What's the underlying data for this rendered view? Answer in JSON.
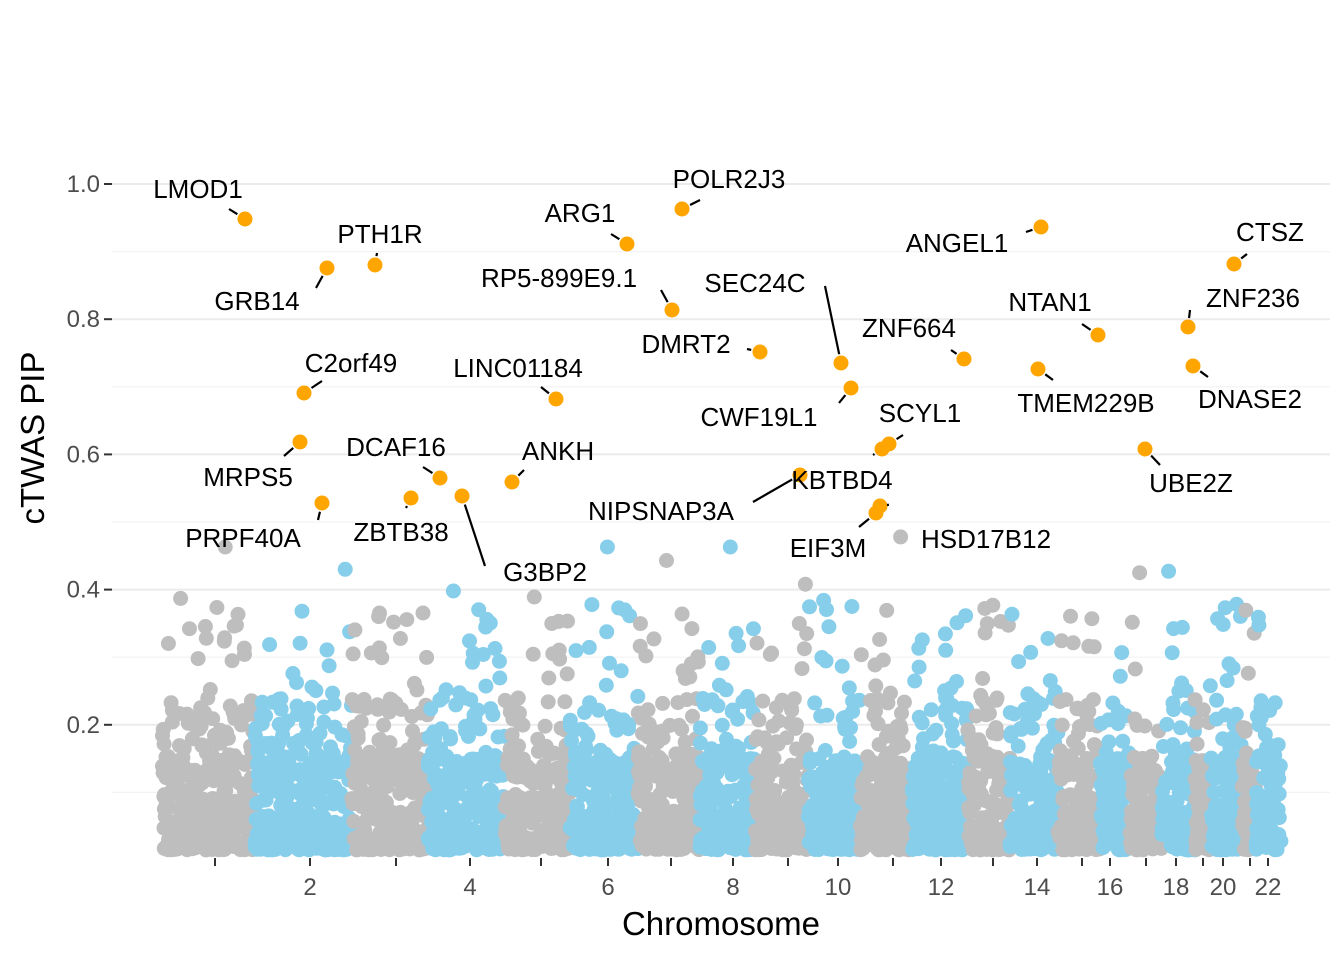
{
  "chart_data": {
    "type": "scatter",
    "title": "",
    "xlabel": "Chromosome",
    "ylabel": "cTWAS PIP",
    "ylim": [
      0,
      1.0
    ],
    "y_ticks": [
      0.2,
      0.4,
      0.6,
      0.8,
      1.0
    ],
    "y_tick_labels": [
      "0.2",
      "0.4",
      "0.6",
      "0.8",
      "1.0"
    ],
    "x_ticks": [
      {
        "label": "",
        "chrom": 1
      },
      {
        "label": "2",
        "chrom": 2
      },
      {
        "label": "",
        "chrom": 3
      },
      {
        "label": "4",
        "chrom": 4
      },
      {
        "label": "",
        "chrom": 5
      },
      {
        "label": "6",
        "chrom": 6
      },
      {
        "label": "",
        "chrom": 7
      },
      {
        "label": "8",
        "chrom": 8
      },
      {
        "label": "",
        "chrom": 9
      },
      {
        "label": "10",
        "chrom": 10
      },
      {
        "label": "",
        "chrom": 11
      },
      {
        "label": "12",
        "chrom": 12
      },
      {
        "label": "",
        "chrom": 13
      },
      {
        "label": "14",
        "chrom": 14
      },
      {
        "label": "",
        "chrom": 15
      },
      {
        "label": "16",
        "chrom": 16
      },
      {
        "label": "",
        "chrom": 17
      },
      {
        "label": "18",
        "chrom": 18
      },
      {
        "label": "",
        "chrom": 19
      },
      {
        "label": "20",
        "chrom": 20
      },
      {
        "label": "",
        "chrom": 21
      },
      {
        "label": "22",
        "chrom": 22
      }
    ],
    "colors": {
      "odd_chromosome": "#bebebe",
      "even_chromosome": "#87ceeb",
      "highlight": "#ffa500",
      "grid": "#ebebeb"
    },
    "highlight_threshold": 0.5,
    "genes": [
      {
        "gene": "LMOD1",
        "chrom": 1,
        "pos": 0.58,
        "pip": 0.945
      },
      {
        "gene": "GRB14",
        "chrom": 2,
        "pos": 0.2,
        "pip": 0.875
      },
      {
        "gene": "PTH1R",
        "chrom": 3,
        "pos": 0.17,
        "pip": 0.878
      },
      {
        "gene": "C2orf49",
        "chrom": 2,
        "pos": 0.02,
        "pip": 0.69
      },
      {
        "gene": "MRPS5",
        "chrom": 1,
        "pos": 0.95,
        "pip": 0.617
      },
      {
        "gene": "PRPF40A",
        "chrom": 2,
        "pos": 0.15,
        "pip": 0.527
      },
      {
        "gene": "DCAF16",
        "chrom": 4,
        "pos": 0.08,
        "pip": 0.563
      },
      {
        "gene": "ZBTB38",
        "chrom": 3,
        "pos": 0.7,
        "pip": 0.535
      },
      {
        "gene": "G3BP2",
        "chrom": 4,
        "pos": 0.35,
        "pip": 0.537
      },
      {
        "gene": "LINC01184",
        "chrom": 5,
        "pos": 0.6,
        "pip": 0.681
      },
      {
        "gene": "ANKH",
        "chrom": 5,
        "pos": 0.04,
        "pip": 0.558
      },
      {
        "gene": "ARG1",
        "chrom": 6,
        "pos": 0.75,
        "pip": 0.91
      },
      {
        "gene": "POLR2J3",
        "chrom": 7,
        "pos": 0.6,
        "pip": 0.96
      },
      {
        "gene": "RP5-899E9.1",
        "chrom": 7,
        "pos": 0.2,
        "pip": 0.814
      },
      {
        "gene": "DMRT2",
        "chrom": 9,
        "pos": 0.05,
        "pip": 0.75
      },
      {
        "gene": "NIPSNAP3A",
        "chrom": 9,
        "pos": 0.9,
        "pip": 0.568
      },
      {
        "gene": "SEC24C",
        "chrom": 10,
        "pos": 0.3,
        "pip": 0.733
      },
      {
        "gene": "CWF19L1",
        "chrom": 10,
        "pos": 0.55,
        "pip": 0.697
      },
      {
        "gene": "KBTBD4",
        "chrom": 11,
        "pos": 0.42,
        "pip": 0.608
      },
      {
        "gene": "SCYL1",
        "chrom": 11,
        "pos": 0.6,
        "pip": 0.614
      },
      {
        "gene": "EIF3M",
        "chrom": 11,
        "pos": 0.3,
        "pip": 0.513
      },
      {
        "gene": "HSD17B12",
        "chrom": 11,
        "pos": 0.42,
        "pip": 0.523
      },
      {
        "gene": "ZNF664",
        "chrom": 12,
        "pos": 0.97,
        "pip": 0.74
      },
      {
        "gene": "ANGEL1",
        "chrom": 14,
        "pos": 0.6,
        "pip": 0.935
      },
      {
        "gene": "TMEM229B",
        "chrom": 14,
        "pos": 0.5,
        "pip": 0.727
      },
      {
        "gene": "NTAN1",
        "chrom": 16,
        "pos": 0.3,
        "pip": 0.776
      },
      {
        "gene": "UBE2Z",
        "chrom": 17,
        "pos": 0.85,
        "pip": 0.608
      },
      {
        "gene": "ZNF236",
        "chrom": 18,
        "pos": 0.9,
        "pip": 0.789
      },
      {
        "gene": "DNASE2",
        "chrom": 19,
        "pos": 0.3,
        "pip": 0.73
      },
      {
        "gene": "CTSZ",
        "chrom": 20,
        "pos": 0.85,
        "pip": 0.88
      }
    ],
    "background_summary": "Thousands of genes with PIP mostly below 0.3 across chromosomes 1-22, alternating grey (odd) and light blue (even); a few reach 0.35-0.48."
  }
}
